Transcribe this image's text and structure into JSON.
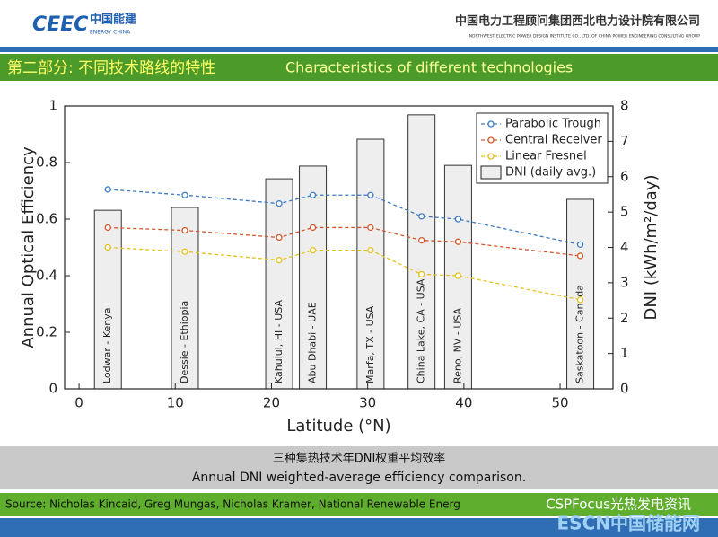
{
  "header": {
    "logo_mark": "CEEC",
    "logo_cn": "中国能建",
    "logo_en": "ENERGY CHINA",
    "org_cn": "中国电力工程顾问集团西北电力设计院有限公司",
    "org_en": "NORTHWEST ELECTRIC POWER DESIGN INSTITUTE CO., LTD. OF CHINA POWER ENGINEERING CONSULTING GROUP"
  },
  "section_title_cn": "第二部分: 不同技术路线的特性",
  "section_title_en": "Characteristics of different technologies",
  "chart_data": {
    "type": "combo",
    "x_label": "Latitude (°N)",
    "y_label": "Annual Optical Efficiency",
    "y2_label": "DNI (kWh/m²/day)",
    "categories": [
      "Lodwar - Kenya",
      "Dessie - Ethiopia",
      "Kahului, HI - USA",
      "Abu Dhabi - UAE",
      "Marfa, TX - USA",
      "China Lake, CA - USA",
      "Reno, NV - USA",
      "Saskatoon - Canada"
    ],
    "x": [
      3.0,
      11.0,
      20.8,
      24.3,
      30.3,
      35.6,
      39.4,
      52.1
    ],
    "series": [
      {
        "name": "DNI (daily avg.)",
        "type": "bar",
        "axis": "y2",
        "color": "#eeeeee",
        "values": [
          5.05,
          5.13,
          5.94,
          6.3,
          7.06,
          7.75,
          6.32,
          5.36
        ]
      },
      {
        "name": "Parabolic Trough",
        "type": "line",
        "color": "#3d7cc4",
        "values": [
          0.705,
          0.685,
          0.655,
          0.685,
          0.685,
          0.61,
          0.6,
          0.51
        ]
      },
      {
        "name": "Central Receiver",
        "type": "line",
        "color": "#d4582c",
        "values": [
          0.57,
          0.56,
          0.535,
          0.57,
          0.57,
          0.525,
          0.52,
          0.47
        ]
      },
      {
        "name": "Linear Fresnel",
        "type": "line",
        "color": "#e6c21e",
        "values": [
          0.5,
          0.485,
          0.455,
          0.49,
          0.49,
          0.405,
          0.4,
          0.315
        ]
      }
    ],
    "xlim": [
      -1.5,
      55.5
    ],
    "xticks": [
      0,
      10,
      20,
      30,
      40,
      50
    ],
    "ylim": [
      0,
      1
    ],
    "yticks": [
      0,
      0.2,
      0.4,
      0.6,
      0.8,
      1
    ],
    "y2lim": [
      0,
      8
    ],
    "y2ticks": [
      0,
      1,
      2,
      3,
      4,
      5,
      6,
      7,
      8
    ],
    "legend": "upper right"
  },
  "caption_cn": "三种集热技术年DNI权重平均效率",
  "caption_en": "Annual DNI weighted-average efficiency comparison.",
  "source": "Source: Nicholas Kincaid, Greg Mungas, Nicholas Kramer, National Renewable Energ",
  "watermark_1": "CSPFocus光热发电资讯",
  "watermark_2": "ESCN中国储能网"
}
